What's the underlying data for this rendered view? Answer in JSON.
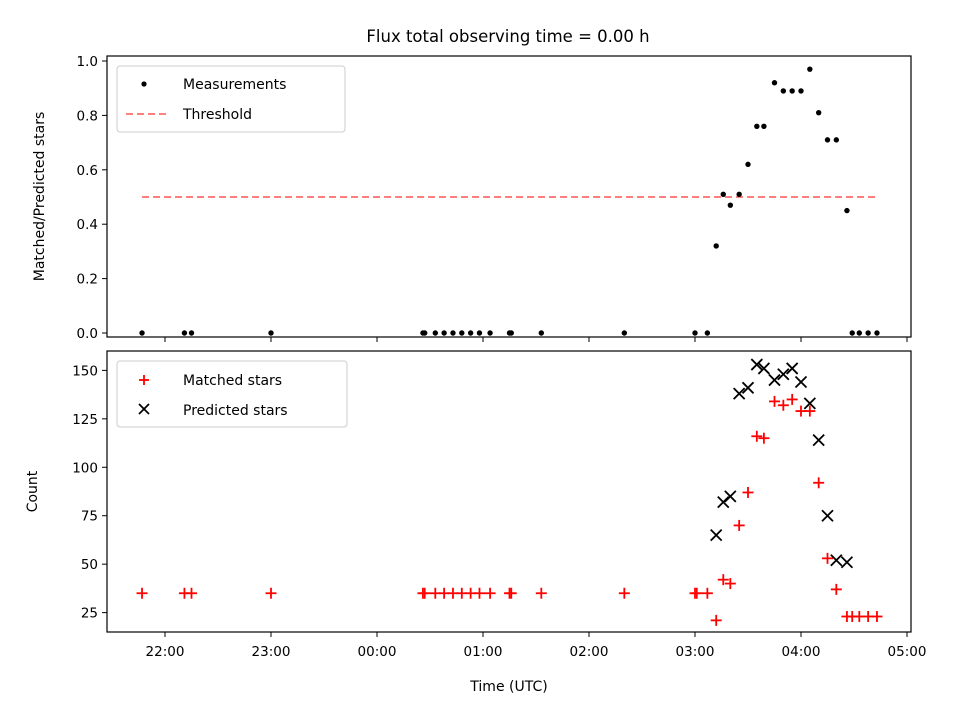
{
  "chart_data": [
    {
      "type": "scatter",
      "panel": "top",
      "title": "Flux total observing time = 0.00 h",
      "xlabel": "",
      "ylabel": "Matched/Predicted stars",
      "ylim": [
        0.0,
        1.0
      ],
      "yticks": [
        "0.0",
        "0.2",
        "0.4",
        "0.6",
        "0.8",
        "1.0"
      ],
      "legend": {
        "position": "upper-left"
      },
      "series": [
        {
          "name": "Measurements",
          "kind": "points",
          "color": "#000000",
          "x": [
            "21:47",
            "22:11",
            "22:15",
            "23:00",
            "00:26",
            "00:27",
            "00:33",
            "00:38",
            "00:43",
            "00:48",
            "00:53",
            "00:58",
            "01:04",
            "01:15",
            "01:16",
            "01:33",
            "02:20",
            "03:00",
            "03:07",
            "03:12",
            "03:16",
            "03:20",
            "03:25",
            "03:30",
            "03:35",
            "03:39",
            "03:45",
            "03:50",
            "03:55",
            "04:00",
            "04:05",
            "04:10",
            "04:15",
            "04:20",
            "04:26",
            "04:29",
            "04:33",
            "04:38",
            "04:43"
          ],
          "y": [
            0.0,
            0.0,
            0.0,
            0.0,
            0.0,
            0.0,
            0.0,
            0.0,
            0.0,
            0.0,
            0.0,
            0.0,
            0.0,
            0.0,
            0.0,
            0.0,
            0.0,
            0.0,
            0.0,
            0.32,
            0.51,
            0.47,
            0.51,
            0.62,
            0.76,
            0.76,
            0.92,
            0.89,
            0.89,
            0.89,
            0.97,
            0.81,
            0.71,
            0.71,
            0.45,
            0.0,
            0.0,
            0.0,
            0.0
          ]
        },
        {
          "name": "Threshold",
          "kind": "line",
          "color": "#ff7f7f",
          "x": [
            "21:47",
            "04:43"
          ],
          "y": [
            0.5,
            0.5
          ]
        }
      ]
    },
    {
      "type": "scatter",
      "panel": "bottom",
      "xlabel": "Time (UTC)",
      "ylabel": "Count",
      "ylim": [
        15,
        160
      ],
      "yticks": [
        "25",
        "50",
        "75",
        "100",
        "125",
        "150"
      ],
      "xticks": [
        "22:00",
        "23:00",
        "00:00",
        "01:00",
        "02:00",
        "03:00",
        "04:00",
        "05:00"
      ],
      "legend": {
        "position": "upper-left"
      },
      "series": [
        {
          "name": "Matched stars",
          "marker": "plus",
          "color": "#ff0000",
          "x": [
            "21:47",
            "22:11",
            "22:15",
            "23:00",
            "00:26",
            "00:27",
            "00:33",
            "00:38",
            "00:43",
            "00:48",
            "00:53",
            "00:58",
            "01:04",
            "01:15",
            "01:16",
            "01:33",
            "02:20",
            "03:00",
            "03:01",
            "03:07",
            "03:12",
            "03:16",
            "03:20",
            "03:25",
            "03:30",
            "03:35",
            "03:39",
            "03:45",
            "03:50",
            "03:55",
            "04:00",
            "04:05",
            "04:10",
            "04:15",
            "04:20",
            "04:26",
            "04:29",
            "04:33",
            "04:38",
            "04:43"
          ],
          "y": [
            35,
            35,
            35,
            35,
            35,
            35,
            35,
            35,
            35,
            35,
            35,
            35,
            35,
            35,
            35,
            35,
            35,
            35,
            35,
            35,
            21,
            42,
            40,
            70,
            87,
            116,
            115,
            134,
            132,
            135,
            129,
            129,
            92,
            53,
            37,
            23,
            23,
            23,
            23,
            23
          ]
        },
        {
          "name": "Predicted stars",
          "marker": "x",
          "color": "#000000",
          "x": [
            "03:12",
            "03:16",
            "03:20",
            "03:25",
            "03:30",
            "03:35",
            "03:39",
            "03:45",
            "03:50",
            "03:55",
            "04:00",
            "04:05",
            "04:10",
            "04:15",
            "04:20",
            "04:26"
          ],
          "y": [
            65,
            82,
            85,
            138,
            141,
            153,
            151,
            145,
            148,
            151,
            144,
            133,
            114,
            75,
            52,
            51
          ]
        }
      ]
    }
  ]
}
